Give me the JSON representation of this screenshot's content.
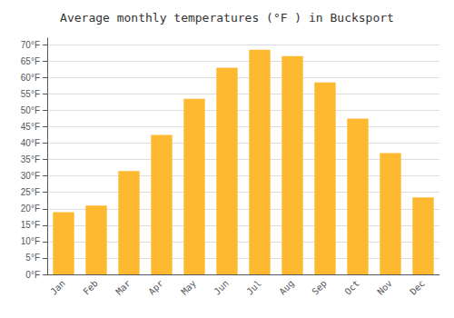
{
  "chart_data": {
    "type": "bar",
    "title": "Average monthly temperatures (°F ) in Bucksport",
    "categories": [
      "Jan",
      "Feb",
      "Mar",
      "Apr",
      "May",
      "Jun",
      "Jul",
      "Aug",
      "Sep",
      "Oct",
      "Nov",
      "Dec"
    ],
    "values": [
      19,
      21,
      31.5,
      42.5,
      53.5,
      63,
      68.5,
      66.5,
      58.5,
      47.5,
      37,
      23.5
    ],
    "color": "#FDB930",
    "ylim": [
      0,
      72
    ],
    "yticks": [
      {
        "value": 0,
        "label": "0°F"
      },
      {
        "value": 5,
        "label": "5°F"
      },
      {
        "value": 10,
        "label": "10°F"
      },
      {
        "value": 15,
        "label": "15°F"
      },
      {
        "value": 20,
        "label": "20°F"
      },
      {
        "value": 25,
        "label": "25°F"
      },
      {
        "value": 30,
        "label": "30°F"
      },
      {
        "value": 35,
        "label": "35°F"
      },
      {
        "value": 40,
        "label": "40°F"
      },
      {
        "value": 45,
        "label": "45°F"
      },
      {
        "value": 50,
        "label": "50°F"
      },
      {
        "value": 55,
        "label": "55°F"
      },
      {
        "value": 60,
        "label": "60°F"
      },
      {
        "value": 65,
        "label": "65°F"
      },
      {
        "value": 70,
        "label": "70°F"
      }
    ],
    "grid": true
  }
}
